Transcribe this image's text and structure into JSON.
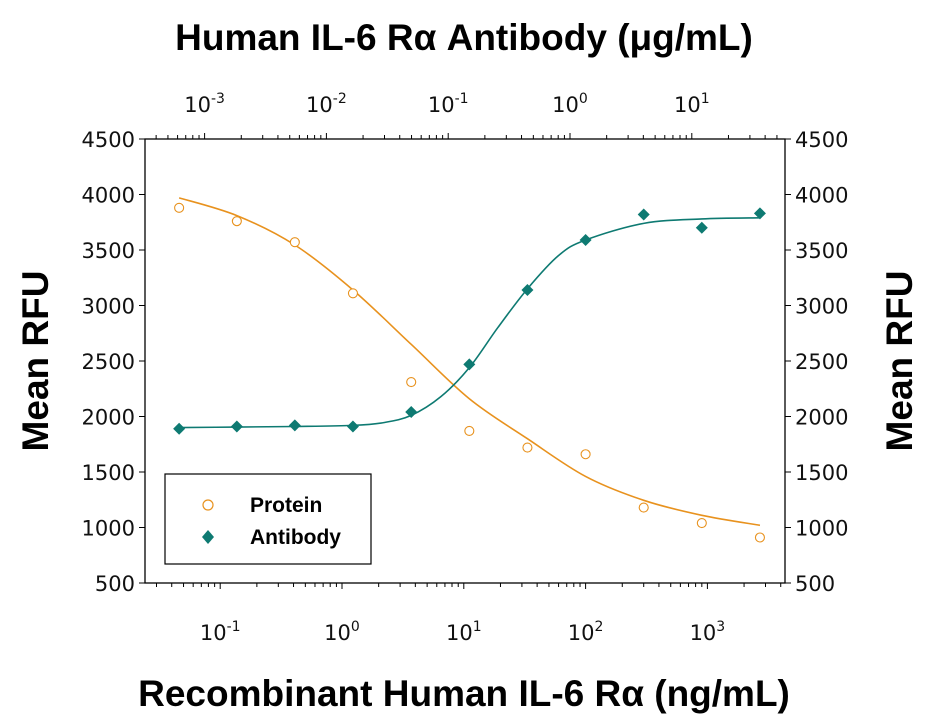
{
  "chart_data": {
    "type": "scatter",
    "title": "Human IL-6 Rα Antibody (μg/mL)",
    "xlabel": "Recombinant Human IL-6 Rα (ng/mL)",
    "ylabel_left": "Mean RFU",
    "ylabel_right": "Mean RFU",
    "x_scale": "log",
    "xlim": [
      0.026,
      4200
    ],
    "x_ticks": [
      {
        "base": "10",
        "exp": "-1"
      },
      {
        "base": "10",
        "exp": "0"
      },
      {
        "base": "10",
        "exp": "1"
      },
      {
        "base": "10",
        "exp": "2"
      },
      {
        "base": "10",
        "exp": "3"
      }
    ],
    "x_top_scale": "log",
    "x_top_ticks": [
      {
        "base": "10",
        "exp": "-3"
      },
      {
        "base": "10",
        "exp": "-2"
      },
      {
        "base": "10",
        "exp": "-1"
      },
      {
        "base": "10",
        "exp": "0"
      },
      {
        "base": "10",
        "exp": "1"
      }
    ],
    "ylim": [
      500,
      4500
    ],
    "y_ticks": [
      "500",
      "1000",
      "1500",
      "2000",
      "2500",
      "3000",
      "3500",
      "4000",
      "4500"
    ],
    "grid": false,
    "legend_placement": "bottom-left",
    "series": [
      {
        "name": "Protein",
        "marker": "open-circle",
        "color": "#E8921E",
        "x": [
          0.046,
          0.137,
          0.41,
          1.23,
          3.7,
          11.1,
          33.3,
          100,
          300,
          900,
          2700
        ],
        "y": [
          3880,
          3760,
          3570,
          3110,
          2310,
          1870,
          1720,
          1660,
          1180,
          1040,
          910
        ],
        "fit": {
          "x": [
            0.046,
            0.137,
            0.41,
            1.23,
            3.7,
            11.1,
            33.3,
            100,
            300,
            900,
            2700
          ],
          "y": [
            3970,
            3810,
            3545,
            3140,
            2650,
            2160,
            1800,
            1460,
            1245,
            1110,
            1020
          ]
        }
      },
      {
        "name": "Antibody",
        "marker": "filled-diamond",
        "color": "#0E7A72",
        "x": [
          0.046,
          0.137,
          0.41,
          1.23,
          3.7,
          11.1,
          33.3,
          100,
          300,
          900,
          2700
        ],
        "y": [
          1890,
          1910,
          1920,
          1910,
          2040,
          2470,
          3140,
          3590,
          3820,
          3700,
          3830
        ],
        "fit": {
          "x": [
            0.046,
            0.137,
            0.41,
            1.23,
            2.2,
            3.7,
            6.5,
            11.1,
            19,
            33.3,
            60,
            100,
            300,
            900,
            2700
          ],
          "y": [
            1900,
            1905,
            1910,
            1920,
            1945,
            2010,
            2180,
            2440,
            2800,
            3150,
            3450,
            3590,
            3740,
            3780,
            3790
          ]
        }
      }
    ]
  }
}
